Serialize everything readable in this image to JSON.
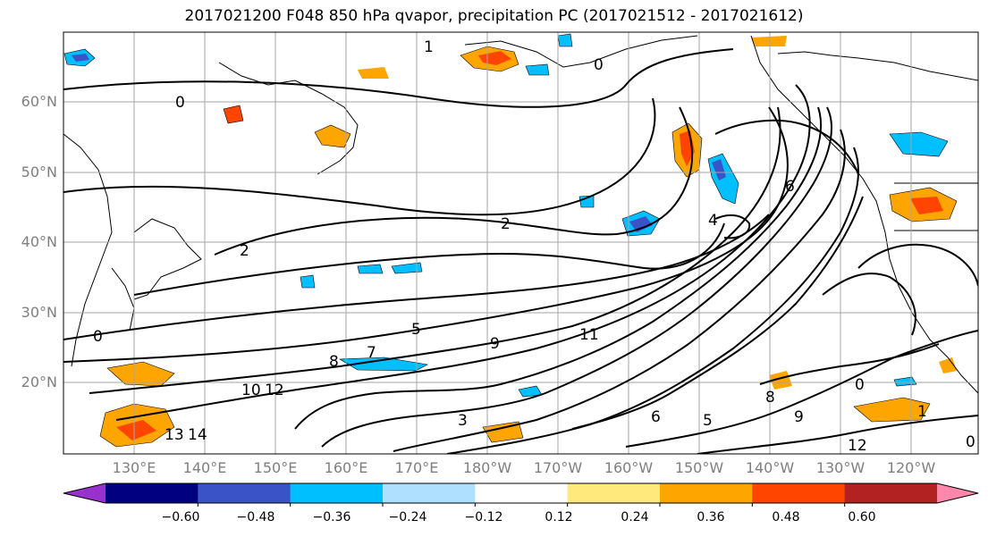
{
  "title": "2017021200 F048 850 hPa qvapor, precipitation PC (2017021512 - 2017021612)",
  "map": {
    "lat_labels": [
      "60°N",
      "50°N",
      "40°N",
      "30°N",
      "20°N"
    ],
    "lon_labels": [
      "130°E",
      "140°E",
      "150°E",
      "160°E",
      "170°E",
      "180°W",
      "170°W",
      "160°W",
      "150°W",
      "140°W",
      "130°W",
      "120°W"
    ],
    "gridlines": true,
    "contour_labels": [
      "1",
      "0",
      "0",
      "2",
      "2",
      "4",
      "6",
      "5",
      "8",
      "7",
      "9",
      "11",
      "10",
      "12",
      "13",
      "14",
      "3",
      "6",
      "5",
      "8",
      "9",
      "0",
      "12",
      "0",
      "1",
      "0"
    ]
  },
  "colorbar": {
    "tick_labels": [
      "−0.60",
      "−0.48",
      "−0.36",
      "−0.24",
      "−0.12",
      "0.12",
      "0.24",
      "0.36",
      "0.48",
      "0.60"
    ],
    "colors": [
      "#9932cc",
      "#000080",
      "#3a54c8",
      "#00bfff",
      "#b0e0ff",
      "#ffffff",
      "#ffe87c",
      "#ffa500",
      "#ff4500",
      "#b22222",
      "#ff88aa"
    ]
  }
}
